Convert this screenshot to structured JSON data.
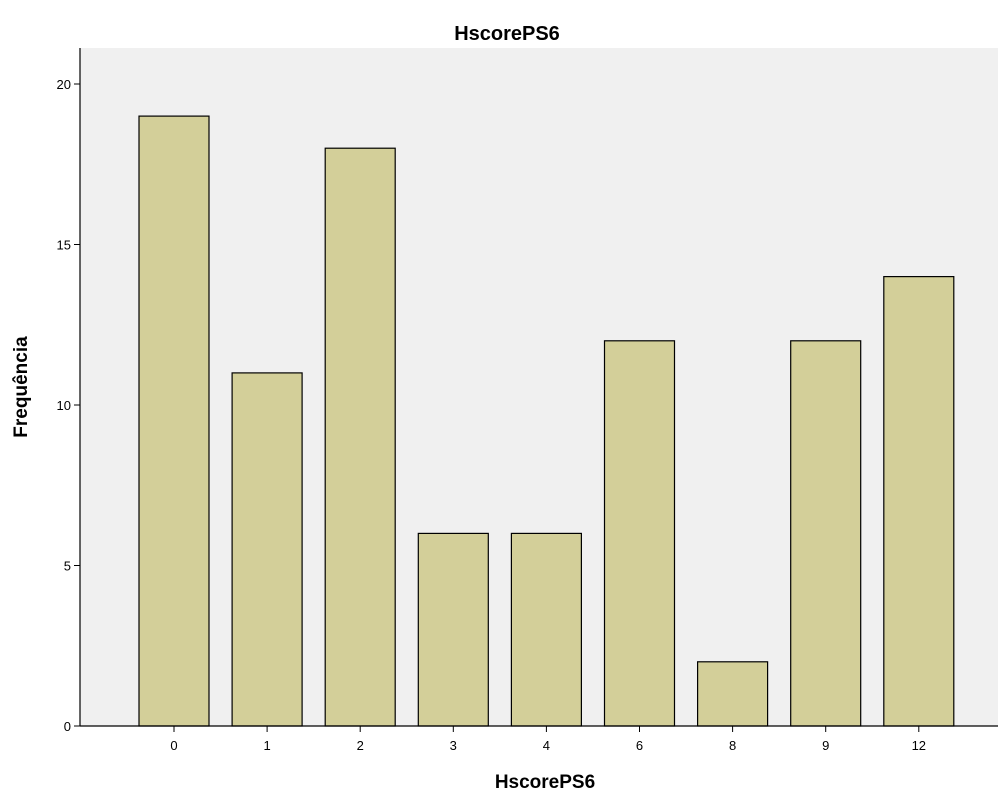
{
  "chart_data": {
    "type": "bar",
    "title": "HscorePS6",
    "xlabel": "HscorePS6",
    "ylabel": "Frequência",
    "categories": [
      "0",
      "1",
      "2",
      "3",
      "4",
      "6",
      "8",
      "9",
      "12"
    ],
    "values": [
      19,
      11,
      18,
      6,
      6,
      12,
      2,
      12,
      14
    ],
    "ylim": [
      0,
      20
    ],
    "yticks": [
      "0",
      "5",
      "10",
      "15",
      "20"
    ],
    "grid": false,
    "legend": "none",
    "colors": {
      "bar_fill": "#d3cf99",
      "plot_background": "#f0f0f0",
      "outline": "#000000"
    }
  }
}
